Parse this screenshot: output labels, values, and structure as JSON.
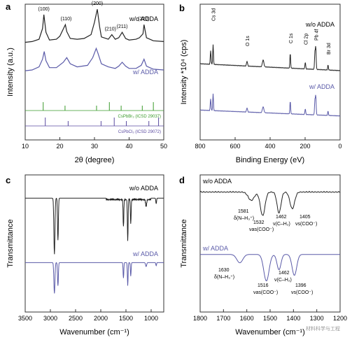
{
  "colors": {
    "black": "#222222",
    "blue": "#5a5aa8",
    "green": "#3a9a2a",
    "purple": "#5a4aa0"
  },
  "chart_data": [
    {
      "panel": "a",
      "type": "line",
      "xlabel": "2θ (degree)",
      "ylabel": "Intensity (a.u.)",
      "xlim": [
        10,
        50
      ],
      "x_ticks": [
        "10",
        "20",
        "30",
        "40",
        "50"
      ],
      "series": [
        {
          "name": "w/o ADDA",
          "color": "#222222",
          "offset": 0.55,
          "x": [
            10,
            12,
            14,
            15,
            15.4,
            16,
            17,
            19,
            20,
            21.6,
            22,
            23,
            25,
            27,
            29,
            30,
            30.8,
            31.5,
            32,
            34,
            35,
            36,
            37,
            38,
            39,
            40,
            42,
            43,
            44,
            44.3,
            45,
            47,
            50
          ],
          "y": [
            0.02,
            0.03,
            0.06,
            0.2,
            0.38,
            0.15,
            0.05,
            0.06,
            0.1,
            0.25,
            0.16,
            0.07,
            0.06,
            0.07,
            0.12,
            0.28,
            0.45,
            0.22,
            0.09,
            0.06,
            0.12,
            0.06,
            0.08,
            0.15,
            0.07,
            0.05,
            0.06,
            0.08,
            0.13,
            0.25,
            0.08,
            0.04,
            0.03
          ]
        },
        {
          "name": "w/ ADDA",
          "color": "#5a5aa8",
          "offset": 0.22,
          "x": [
            10,
            12,
            14,
            15,
            15.5,
            16,
            17,
            19,
            21,
            22,
            23,
            25,
            28,
            29.5,
            30.5,
            31,
            32,
            34,
            36,
            37,
            38,
            39,
            40,
            42,
            43.5,
            44.3,
            45,
            47,
            50
          ],
          "y": [
            0.03,
            0.04,
            0.08,
            0.18,
            0.28,
            0.16,
            0.07,
            0.07,
            0.14,
            0.2,
            0.12,
            0.08,
            0.1,
            0.2,
            0.32,
            0.26,
            0.12,
            0.08,
            0.06,
            0.09,
            0.14,
            0.09,
            0.06,
            0.06,
            0.1,
            0.18,
            0.09,
            0.05,
            0.04
          ]
        }
      ],
      "peak_labels": [
        {
          "text": "(100)",
          "x": 15.4
        },
        {
          "text": "(110)",
          "x": 21.8
        },
        {
          "text": "(200)",
          "x": 30.8
        },
        {
          "text": "(210)",
          "x": 34.6
        },
        {
          "text": "(211)",
          "x": 38.0
        },
        {
          "text": "(220)",
          "x": 44.2
        }
      ],
      "references": [
        {
          "name": "CsPbBr₃ (ICSD 29037)",
          "color": "#3a9a2a",
          "sticks": [
            15.2,
            21.5,
            30.6,
            34.3,
            37.7,
            43.8,
            47.0
          ]
        },
        {
          "name": "CsPbCl₃ (ICSD 29072)",
          "color": "#5a4aa0",
          "sticks": [
            15.8,
            22.4,
            31.9,
            35.7,
            39.2,
            45.7,
            48.5
          ]
        }
      ]
    },
    {
      "panel": "b",
      "type": "line",
      "xlabel": "Binding Energy (eV)",
      "ylabel": "Intensity *10⁴ (cps)",
      "xlim": [
        800,
        0
      ],
      "x_ticks": [
        "800",
        "600",
        "400",
        "200",
        "0"
      ],
      "series": [
        {
          "name": "w/o ADDA",
          "color": "#222222",
          "offset": 0.55
        },
        {
          "name": "w/ ADDA",
          "color": "#5a5aa8",
          "offset": 0.05
        }
      ],
      "peak_labels": [
        {
          "text": "Cs 3d",
          "x": 726
        },
        {
          "text": "O 1s",
          "x": 532
        },
        {
          "text": "C 1s",
          "x": 285
        },
        {
          "text": "Cl 2p",
          "x": 199
        },
        {
          "text": "Pb 4f",
          "x": 139
        },
        {
          "text": "Br 3d",
          "x": 69
        }
      ]
    },
    {
      "panel": "c",
      "type": "line",
      "xlabel": "Wavenumber (cm⁻¹)",
      "ylabel": "Transmittance",
      "xlim": [
        3500,
        750
      ],
      "x_ticks": [
        "3500",
        "3000",
        "2500",
        "2000",
        "1500",
        "1000"
      ],
      "series": [
        {
          "name": "w/o ADDA",
          "color": "#222222",
          "offset": 0.5
        },
        {
          "name": "w/ ADDA",
          "color": "#5a5aa8",
          "offset": 0.0
        }
      ]
    },
    {
      "panel": "d",
      "type": "line",
      "xlabel": "Wavenumber (cm⁻¹)",
      "ylabel": "Transmittance",
      "xlim": [
        1800,
        1200
      ],
      "x_ticks": [
        "1800",
        "1700",
        "1600",
        "1500",
        "1400",
        "1300",
        "1200"
      ],
      "series": [
        {
          "name": "w/o ADDA",
          "color": "#222222",
          "offset": 0.5
        },
        {
          "name": "w/ ADDA",
          "color": "#5a5aa8",
          "offset": 0.0
        }
      ],
      "annotations": [
        {
          "value": "1581",
          "mode": "δ(N–H₃⁺)"
        },
        {
          "value": "1532",
          "mode": "νas(COO⁻)"
        },
        {
          "value": "1462",
          "mode": "ν(C–H₂)"
        },
        {
          "value": "1405",
          "mode": "νs(COO⁻)"
        },
        {
          "value": "1630",
          "mode": "δ(N–H₃⁺)"
        },
        {
          "value": "1516",
          "mode": "νas(COO⁻)"
        },
        {
          "value": "1462",
          "mode": "ν(C–H₂)"
        },
        {
          "value": "1396",
          "mode": "νs(COO⁻)"
        }
      ]
    }
  ],
  "watermark": "材料科学与工程"
}
